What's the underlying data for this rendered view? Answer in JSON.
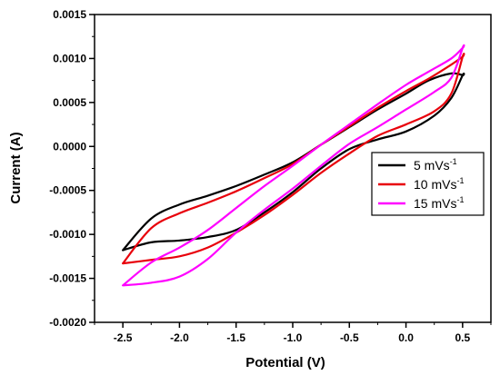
{
  "chart_data": {
    "type": "line",
    "title": "",
    "xlabel": "Potential (V)",
    "ylabel": "Current (A)",
    "xlim": [
      -2.75,
      0.75
    ],
    "ylim": [
      -0.002,
      0.0015
    ],
    "xticks": [
      -2.5,
      -2.0,
      -1.5,
      -1.0,
      -0.5,
      0.0,
      0.5
    ],
    "xtick_labels": [
      "-2.5",
      "-2.0",
      "-1.5",
      "-1.0",
      "-0.5",
      "0.0",
      "0.5"
    ],
    "yticks": [
      -0.002,
      -0.0015,
      -0.001,
      -0.0005,
      0.0,
      0.0005,
      0.001,
      0.0015
    ],
    "ytick_labels": [
      "-0.0020",
      "-0.0015",
      "-0.0010",
      "-0.0005",
      "0.0000",
      "0.0005",
      "0.0010",
      "0.0015"
    ],
    "grid": false,
    "legend_position": "right",
    "series": [
      {
        "name": "5 mVs",
        "name_sup": "-1",
        "color": "#000000",
        "x": [
          -2.5,
          -2.25,
          -2.0,
          -1.75,
          -1.5,
          -1.25,
          -1.0,
          -0.75,
          -0.5,
          -0.25,
          0.0,
          0.25,
          0.4,
          0.5,
          0.5,
          0.4,
          0.2,
          0.0,
          -0.25,
          -0.5,
          -0.75,
          -1.0,
          -1.25,
          -1.5,
          -1.75,
          -2.0,
          -2.25,
          -2.5
        ],
        "y": [
          -0.00118,
          -0.00109,
          -0.00107,
          -0.00103,
          -0.00095,
          -0.00075,
          -0.00052,
          -0.00025,
          -3e-05,
          8e-05,
          0.00017,
          0.00035,
          0.00055,
          0.00081,
          0.00081,
          0.00083,
          0.00075,
          0.0006,
          0.00042,
          0.00022,
          2e-05,
          -0.00018,
          -0.00032,
          -0.00045,
          -0.00056,
          -0.00066,
          -0.00082,
          -0.00118
        ]
      },
      {
        "name": "10 mVs",
        "name_sup": "-1",
        "color": "#e8000b",
        "x": [
          -2.5,
          -2.25,
          -2.0,
          -1.75,
          -1.5,
          -1.25,
          -1.0,
          -0.75,
          -0.5,
          -0.25,
          0.0,
          0.25,
          0.4,
          0.5,
          0.5,
          0.4,
          0.2,
          0.0,
          -0.25,
          -0.5,
          -0.75,
          -1.0,
          -1.25,
          -1.5,
          -1.75,
          -2.0,
          -2.25,
          -2.5
        ],
        "y": [
          -0.00133,
          -0.00129,
          -0.00125,
          -0.00115,
          -0.00098,
          -0.00078,
          -0.00055,
          -0.0003,
          -8e-05,
          0.00012,
          0.00025,
          0.0004,
          0.0006,
          0.00102,
          0.00102,
          0.00093,
          0.00077,
          0.00063,
          0.00044,
          0.00023,
          2e-05,
          -0.0002,
          -0.00036,
          -0.00051,
          -0.00064,
          -0.00076,
          -0.00093,
          -0.00133
        ]
      },
      {
        "name": "15 mVs",
        "name_sup": "-1",
        "color": "#ff00ff",
        "x": [
          -2.5,
          -2.25,
          -2.0,
          -1.75,
          -1.5,
          -1.25,
          -1.0,
          -0.75,
          -0.5,
          -0.25,
          0.0,
          0.25,
          0.4,
          0.5,
          0.5,
          0.4,
          0.2,
          0.0,
          -0.25,
          -0.5,
          -0.75,
          -1.0,
          -1.25,
          -1.5,
          -1.75,
          -2.0,
          -2.25,
          -2.5
        ],
        "y": [
          -0.00158,
          -0.00155,
          -0.00148,
          -0.00128,
          -0.00098,
          -0.00072,
          -0.00048,
          -0.00022,
          3e-05,
          0.00022,
          0.00042,
          0.00062,
          0.00078,
          0.00112,
          0.00112,
          0.001,
          0.00085,
          0.0007,
          0.00048,
          0.00025,
          2e-05,
          -0.00022,
          -0.00045,
          -0.0007,
          -0.00095,
          -0.00115,
          -0.00132,
          -0.00158
        ]
      }
    ]
  }
}
